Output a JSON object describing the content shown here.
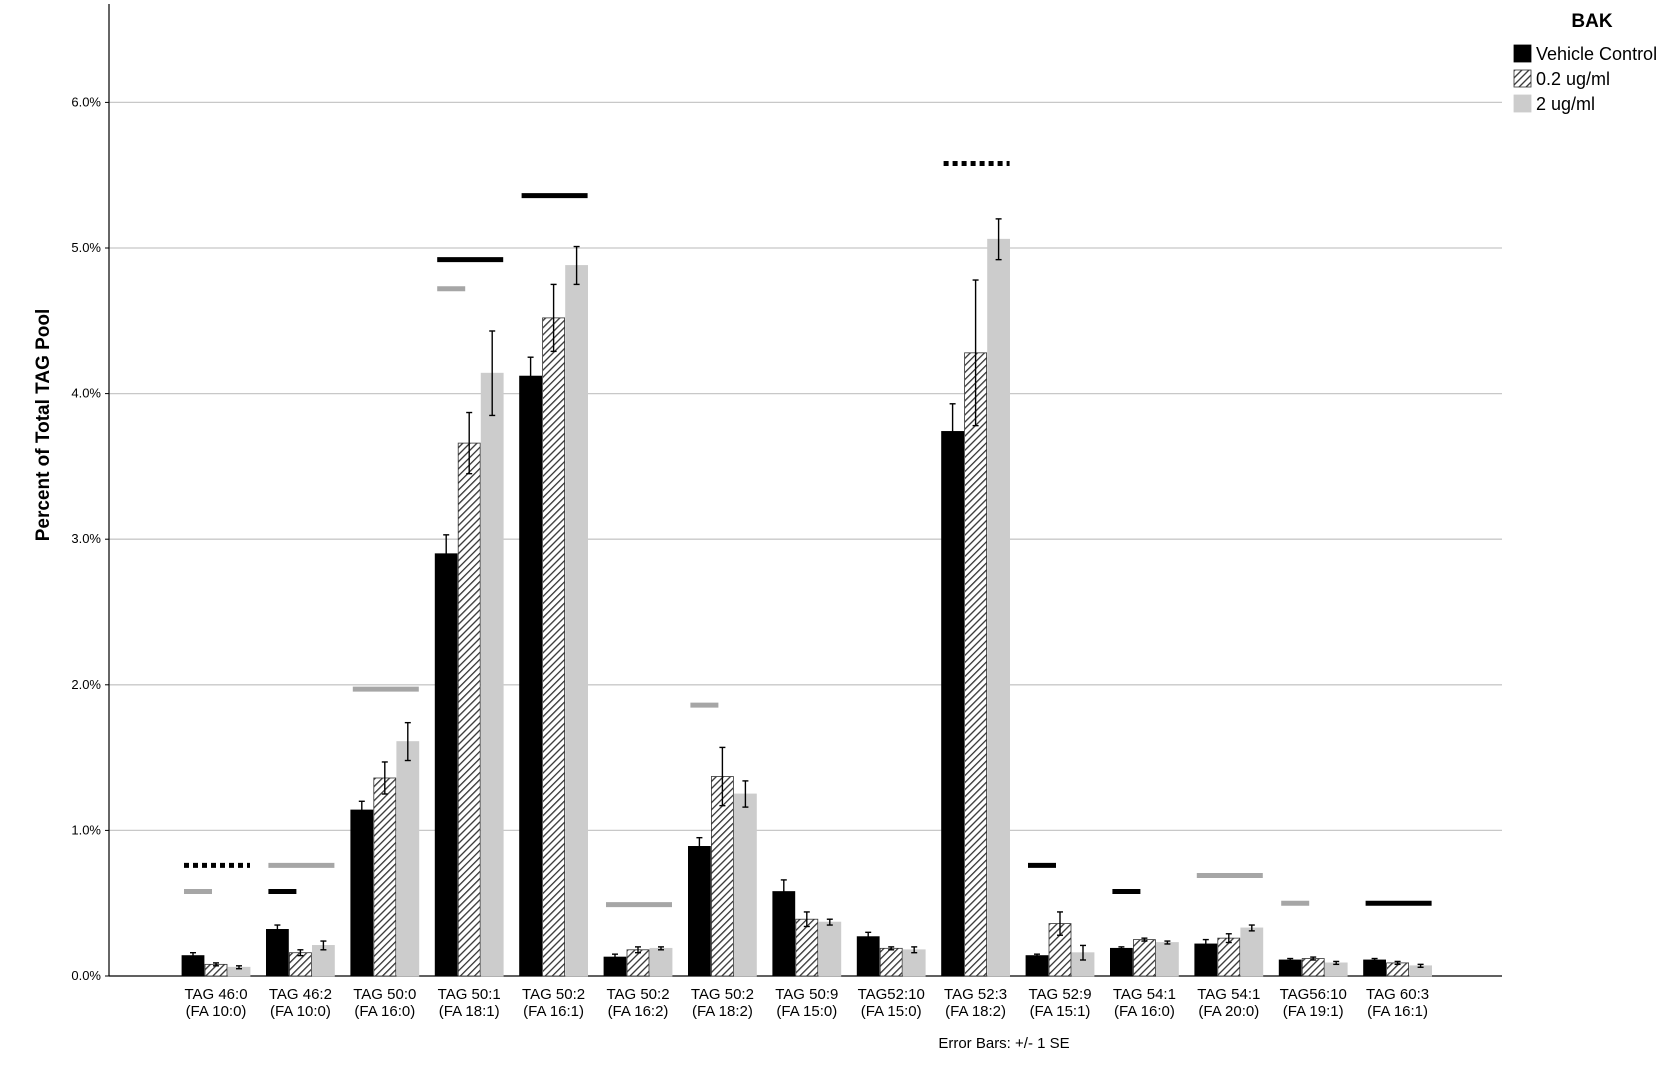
{
  "chart_data": {
    "type": "bar",
    "title": "",
    "ylabel": "Percent of Total TAG Pool",
    "xlabel": "",
    "ylim": [
      0,
      0.067
    ],
    "yticks": [
      0,
      0.01,
      0.02,
      0.03,
      0.04,
      0.05,
      0.06
    ],
    "ytick_labels": [
      "0.0%",
      "1.0%",
      "2.0%",
      "3.0%",
      "4.0%",
      "5.0%",
      "6.0%"
    ],
    "grid": "horizontal",
    "legend_position": "top-right",
    "legend_title": "BAK",
    "note": "Error Bars: +/- 1 SE",
    "categories": [
      {
        "line1": "TAG 46:0",
        "line2": "(FA 10:0)"
      },
      {
        "line1": "TAG 46:2",
        "line2": "(FA 10:0)"
      },
      {
        "line1": "TAG 50:0",
        "line2": "(FA 16:0)"
      },
      {
        "line1": "TAG 50:1",
        "line2": "(FA 18:1)"
      },
      {
        "line1": "TAG 50:2",
        "line2": "(FA 16:1)"
      },
      {
        "line1": "TAG 50:2",
        "line2": "(FA 16:2)"
      },
      {
        "line1": "TAG 50:2",
        "line2": "(FA 18:2)"
      },
      {
        "line1": "TAG 50:9",
        "line2": "(FA 15:0)"
      },
      {
        "line1": "TAG52:10",
        "line2": "(FA 15:0)"
      },
      {
        "line1": "TAG 52:3",
        "line2": "(FA 18:2)"
      },
      {
        "line1": "TAG 52:9",
        "line2": "(FA 15:1)"
      },
      {
        "line1": "TAG 54:1",
        "line2": "(FA 16:0)"
      },
      {
        "line1": "TAG 54:1",
        "line2": "(FA 20:0)"
      },
      {
        "line1": "TAG56:10",
        "line2": "(FA 19:1)"
      },
      {
        "line1": "TAG 60:3",
        "line2": "(FA 16:1)"
      }
    ],
    "series": [
      {
        "name": "Vehicle Control",
        "pattern": "solid-black",
        "color": "#000000",
        "values": [
          0.0014,
          0.0032,
          0.0114,
          0.029,
          0.0412,
          0.0013,
          0.0089,
          0.0058,
          0.0027,
          0.0374,
          0.0014,
          0.0019,
          0.0022,
          0.0011,
          0.0011
        ],
        "errors": [
          0.0002,
          0.0003,
          0.0006,
          0.0013,
          0.0013,
          0.0002,
          0.0006,
          0.0008,
          0.0003,
          0.0019,
          0.0001,
          0.0001,
          0.0003,
          0.0001,
          0.0001
        ]
      },
      {
        "name": "0.2 ug/ml",
        "pattern": "hatched",
        "color": "#333333",
        "values": [
          0.0008,
          0.0016,
          0.0136,
          0.0366,
          0.0452,
          0.0018,
          0.0137,
          0.0039,
          0.0019,
          0.0428,
          0.0036,
          0.0025,
          0.0026,
          0.0012,
          0.0009
        ],
        "errors": [
          0.0001,
          0.0002,
          0.0011,
          0.0021,
          0.0023,
          0.0002,
          0.002,
          0.0005,
          0.0001,
          0.005,
          0.0008,
          0.0001,
          0.0003,
          0.0001,
          0.0001
        ]
      },
      {
        "name": "2 ug/ml",
        "pattern": "solid-light-gray",
        "color": "#cccccc",
        "values": [
          0.0006,
          0.0021,
          0.0161,
          0.0414,
          0.0488,
          0.0019,
          0.0125,
          0.0037,
          0.0018,
          0.0506,
          0.0016,
          0.0023,
          0.0033,
          0.0009,
          0.0007
        ],
        "errors": [
          0.0001,
          0.0003,
          0.0013,
          0.0029,
          0.0013,
          0.0001,
          0.0009,
          0.0002,
          0.0002,
          0.0014,
          0.0005,
          0.0001,
          0.0002,
          0.0001,
          0.0001
        ]
      }
    ],
    "significance_markers": [
      {
        "category": 0,
        "y": 0.0076,
        "style": "dotted",
        "color": "#000000",
        "span": "wide"
      },
      {
        "category": 0,
        "y": 0.0058,
        "style": "solid",
        "color": "#a6a6a6",
        "span": "short"
      },
      {
        "category": 1,
        "y": 0.0076,
        "style": "solid",
        "color": "#a6a6a6",
        "span": "wide"
      },
      {
        "category": 1,
        "y": 0.0058,
        "style": "solid",
        "color": "#000000",
        "span": "short"
      },
      {
        "category": 2,
        "y": 0.0197,
        "style": "solid",
        "color": "#a6a6a6",
        "span": "wide"
      },
      {
        "category": 3,
        "y": 0.0492,
        "style": "solid",
        "color": "#000000",
        "span": "wide"
      },
      {
        "category": 3,
        "y": 0.0472,
        "style": "solid",
        "color": "#a6a6a6",
        "span": "short"
      },
      {
        "category": 4,
        "y": 0.0536,
        "style": "solid",
        "color": "#000000",
        "span": "wide"
      },
      {
        "category": 5,
        "y": 0.0049,
        "style": "solid",
        "color": "#a6a6a6",
        "span": "wide"
      },
      {
        "category": 6,
        "y": 0.0186,
        "style": "solid",
        "color": "#a6a6a6",
        "span": "short"
      },
      {
        "category": 9,
        "y": 0.0558,
        "style": "dotted",
        "color": "#000000",
        "span": "wide"
      },
      {
        "category": 10,
        "y": 0.0076,
        "style": "solid",
        "color": "#000000",
        "span": "short"
      },
      {
        "category": 11,
        "y": 0.0058,
        "style": "solid",
        "color": "#000000",
        "span": "short"
      },
      {
        "category": 12,
        "y": 0.0069,
        "style": "solid",
        "color": "#a6a6a6",
        "span": "wide"
      },
      {
        "category": 13,
        "y": 0.005,
        "style": "solid",
        "color": "#a6a6a6",
        "span": "short"
      },
      {
        "category": 14,
        "y": 0.005,
        "style": "solid",
        "color": "#000000",
        "span": "wide"
      }
    ]
  }
}
